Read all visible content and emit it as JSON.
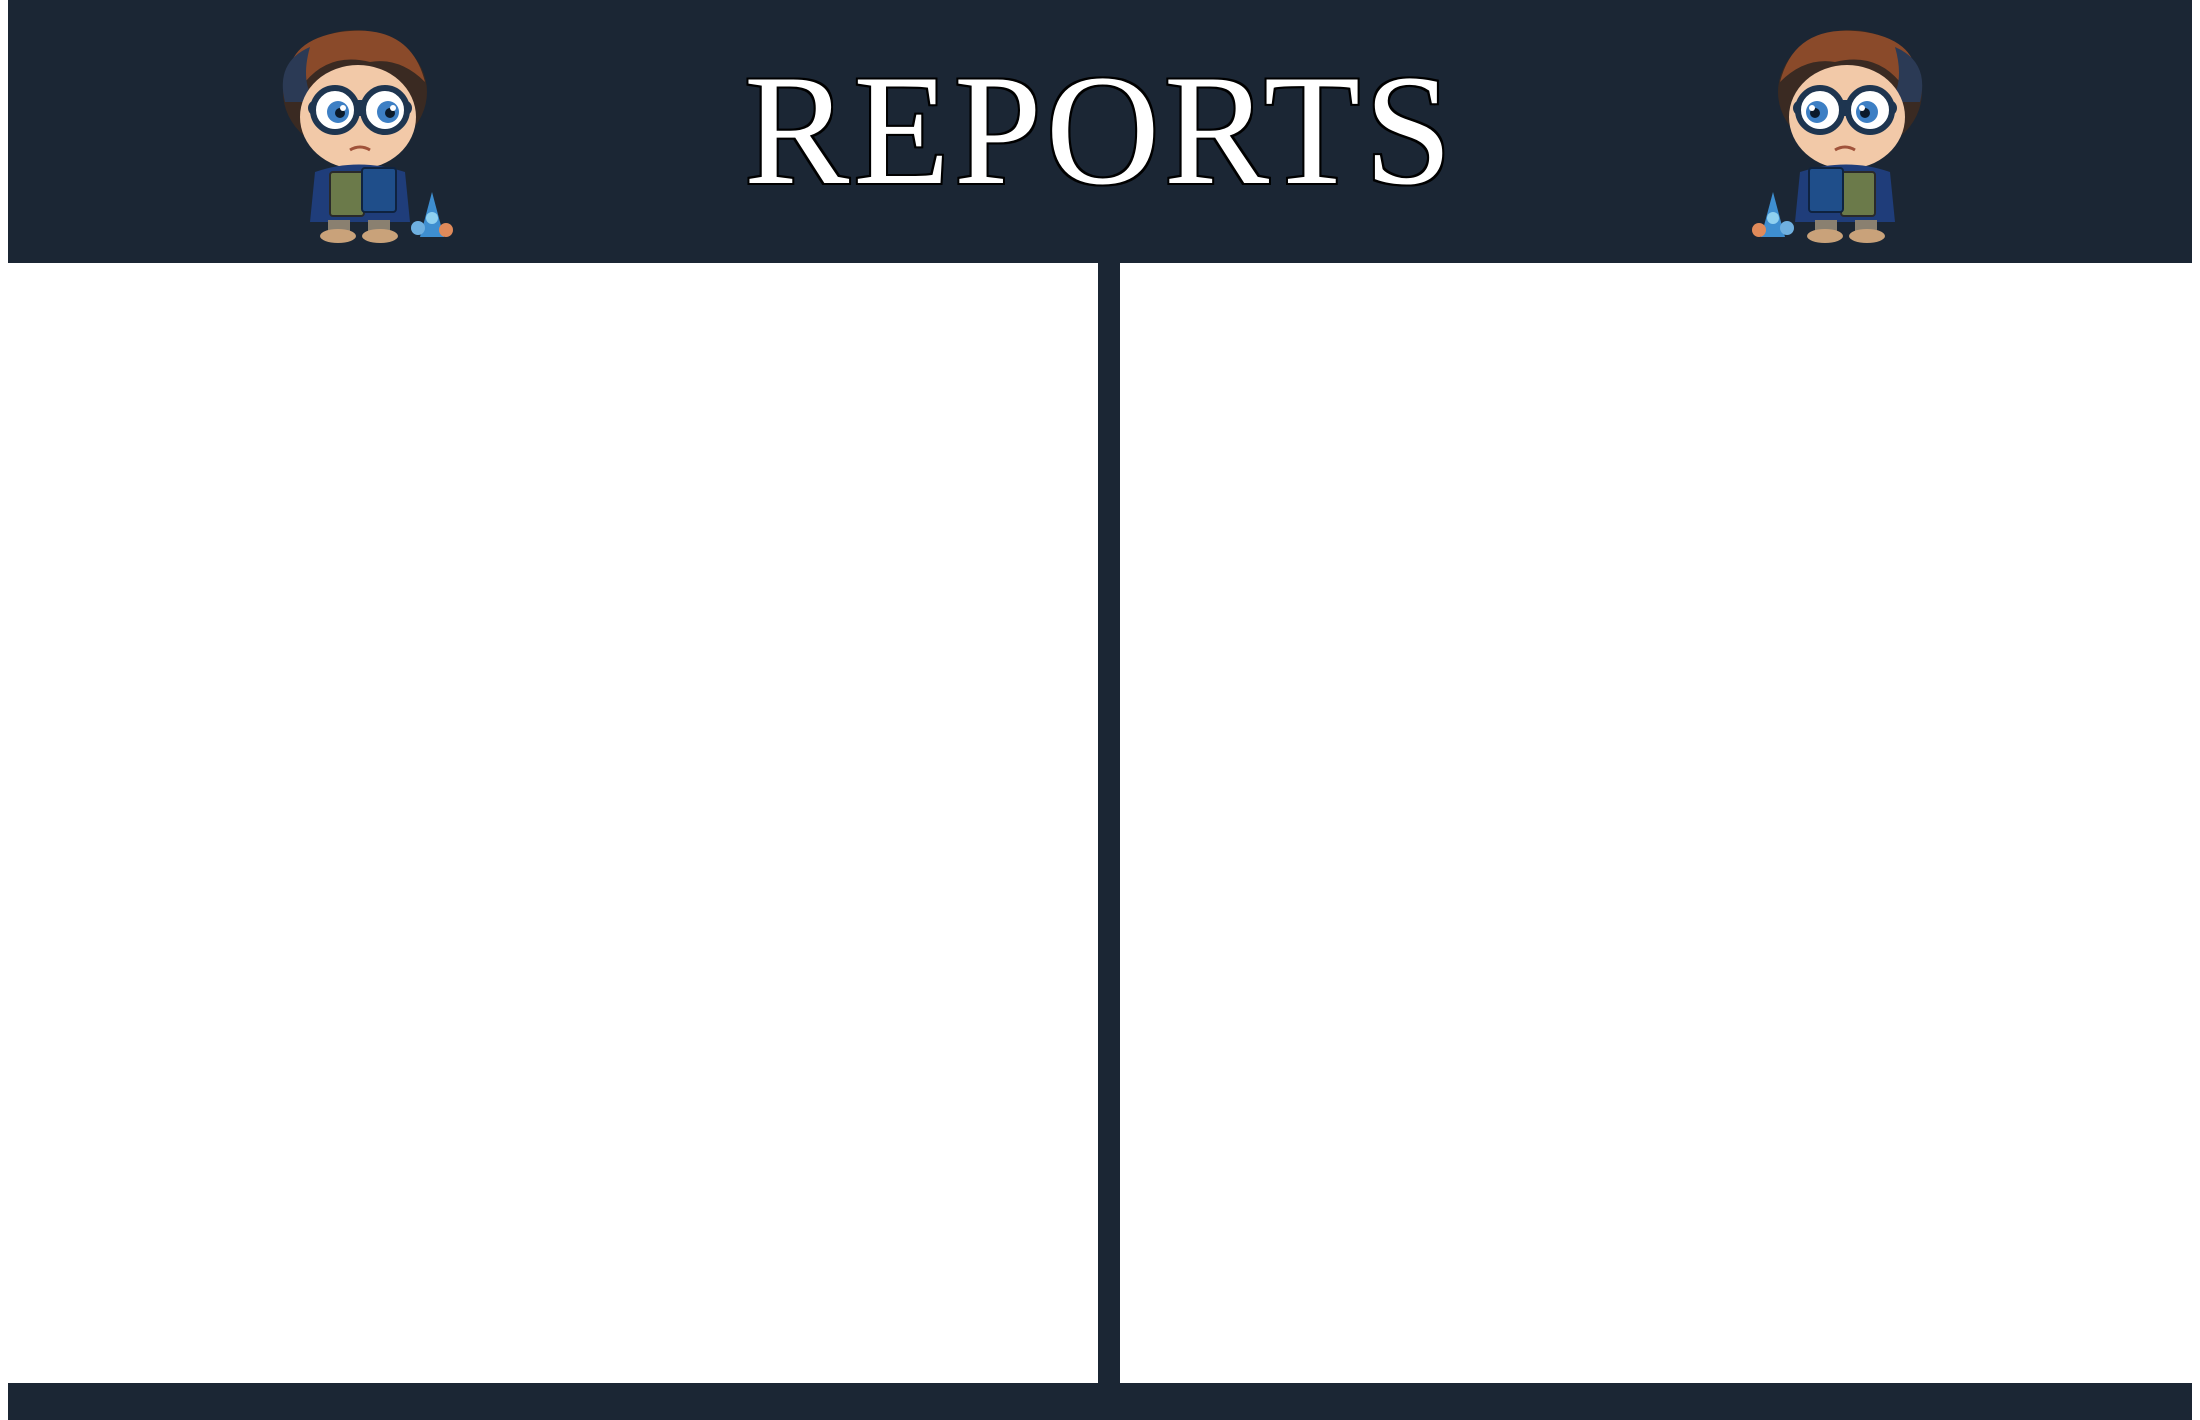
{
  "header": {
    "title": "REPORTS",
    "mascot_left_icon": "boy-with-glasses-reading-icon",
    "mascot_right_icon": "boy-with-glasses-reading-icon"
  },
  "panels": {
    "left": {
      "content": ""
    },
    "right": {
      "content": ""
    }
  },
  "colors": {
    "bar": "#1b2634",
    "background": "#ffffff",
    "title": "#ffffff"
  }
}
